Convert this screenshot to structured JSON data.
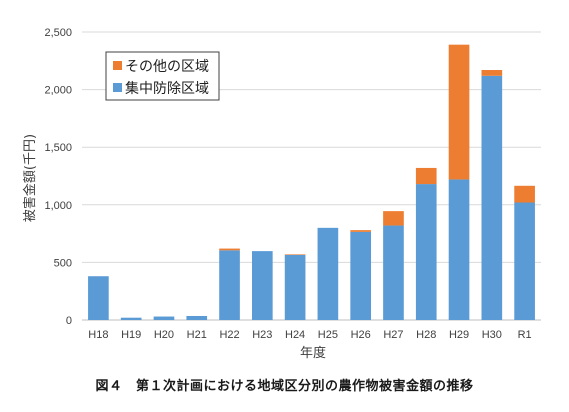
{
  "chart_data": {
    "type": "bar",
    "stacked": true,
    "categories": [
      "H18",
      "H19",
      "H20",
      "H21",
      "H22",
      "H23",
      "H24",
      "H25",
      "H26",
      "H27",
      "H28",
      "H29",
      "H30",
      "R1"
    ],
    "series": [
      {
        "name": "集中防除区域",
        "color": "#5b9bd5",
        "values": [
          380,
          20,
          30,
          35,
          605,
          598,
          565,
          800,
          765,
          820,
          1180,
          1220,
          2120,
          1020
        ]
      },
      {
        "name": "その他の区域",
        "color": "#ed7d31",
        "values": [
          0,
          0,
          0,
          0,
          15,
          0,
          5,
          0,
          15,
          125,
          140,
          1170,
          50,
          145
        ]
      }
    ],
    "ylabel": "被害金額(千円)",
    "xlabel": "年度",
    "ylim": [
      0,
      2500
    ],
    "yticks": [
      "0",
      "500",
      "1,000",
      "1,500",
      "2,000",
      "2,500"
    ],
    "grid": true,
    "legend_position": "top-left",
    "legend_order": [
      "その他の区域",
      "集中防除区域"
    ]
  },
  "caption": "図４　第１次計画における地域区分別の農作物被害金額の推移"
}
